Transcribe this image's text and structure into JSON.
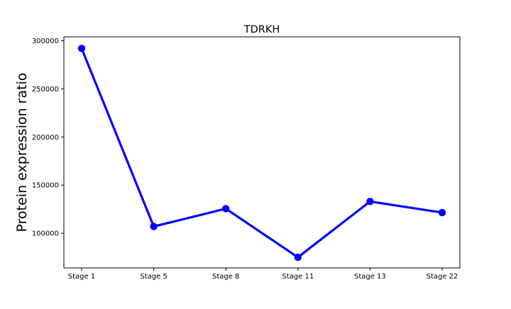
{
  "chart_data": {
    "type": "line",
    "title": "TDRKH",
    "xlabel": "",
    "ylabel": "Protein expression ratio",
    "categories": [
      "Stage 1",
      "Stage 5",
      "Stage 8",
      "Stage 11",
      "Stage 13",
      "Stage 22"
    ],
    "series": [
      {
        "values": [
          292000,
          107000,
          125500,
          75000,
          133000,
          121500
        ],
        "color": "#0000ff",
        "marker": "circle"
      }
    ],
    "ylim": [
      64000,
      304000
    ],
    "yticks": [
      100000,
      150000,
      200000,
      250000,
      300000
    ],
    "ytick_labels": [
      "100000",
      "150000",
      "200000",
      "250000",
      "300000"
    ],
    "grid": false,
    "legend": "none"
  }
}
